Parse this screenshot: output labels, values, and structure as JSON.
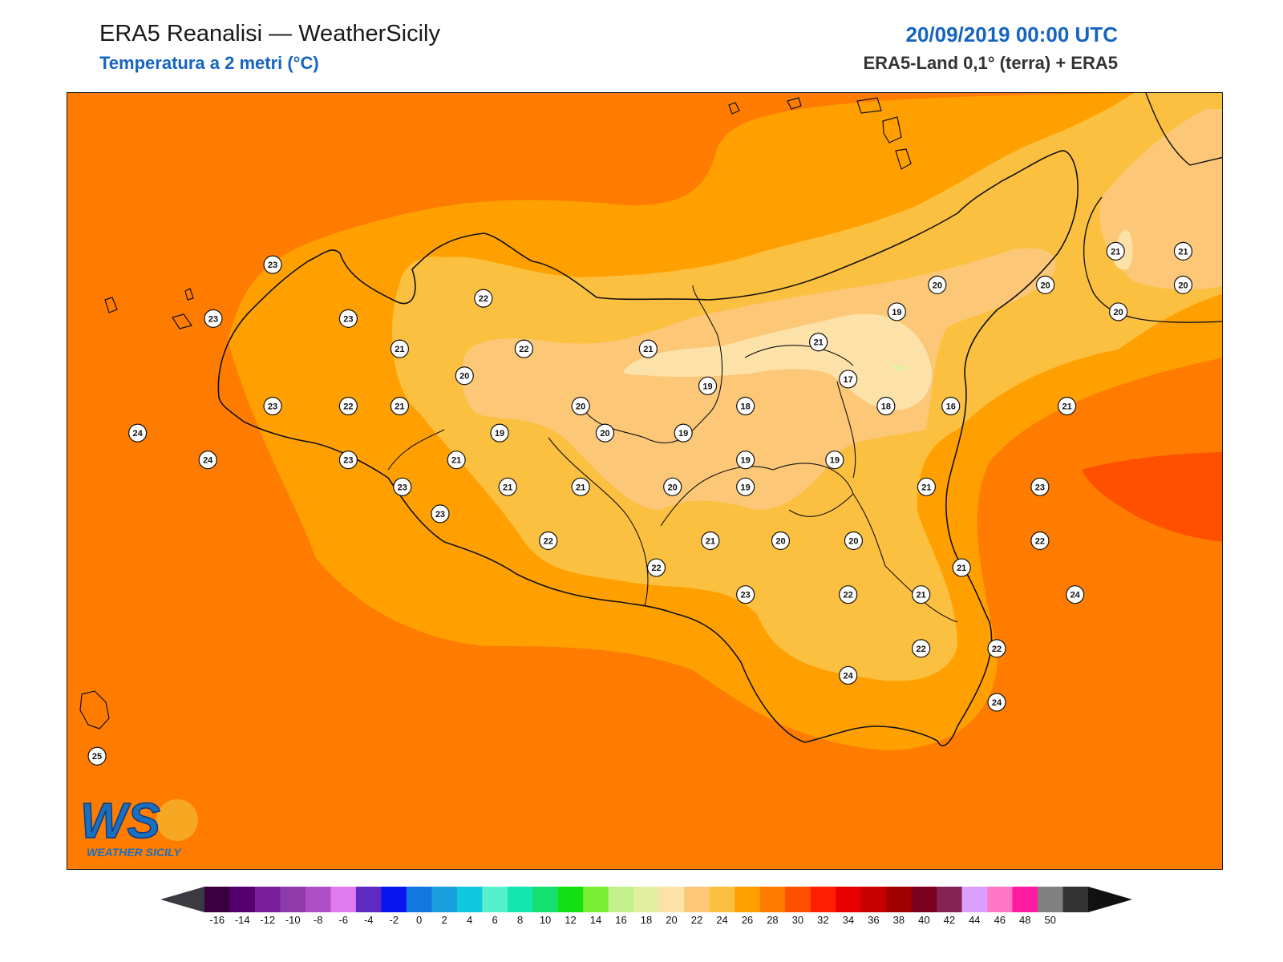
{
  "header": {
    "title": "ERA5 Reanalisi — WeatherSicily",
    "subtitle": "Temperatura a 2 metri (°C)",
    "datetime": "20/09/2019 00:00 UTC",
    "source": "ERA5-Land 0,1° (terra) + ERA5"
  },
  "logo": {
    "letters": "WS",
    "name": "WEATHER SICILY"
  },
  "colorbar": {
    "ticks": [
      "-16",
      "-14",
      "-12",
      "-10",
      "-8",
      "-6",
      "-4",
      "-2",
      "0",
      "2",
      "4",
      "6",
      "8",
      "10",
      "12",
      "14",
      "16",
      "18",
      "20",
      "22",
      "24",
      "26",
      "28",
      "30",
      "32",
      "34",
      "36",
      "38",
      "40",
      "42",
      "44",
      "46",
      "48",
      "50"
    ],
    "colors": [
      "#3b0040",
      "#560070",
      "#7a1e9c",
      "#8e3aa8",
      "#b04ec7",
      "#e07aee",
      "#5d2bc2",
      "#0a16f0",
      "#1078e0",
      "#1a9fe0",
      "#10c8e0",
      "#55f0cc",
      "#14e6b0",
      "#13e070",
      "#12e012",
      "#7aee32",
      "#c2f08a",
      "#e2eea0",
      "#fce2a8",
      "#fcc878",
      "#fcc040",
      "#ffa000",
      "#ff7c00",
      "#ff5000",
      "#ff1e00",
      "#e80000",
      "#c80000",
      "#a00000",
      "#7c0020",
      "#852454",
      "#d9a0ff",
      "#ff78c8",
      "#ff1aa0",
      "#808080",
      "#333333"
    ],
    "under_color": "#3a3a40",
    "over_color": "#111111"
  },
  "stations": [
    {
      "lon": 12.58,
      "lat": 38.28,
      "t": "23"
    },
    {
      "lon": 12.36,
      "lat": 38.12,
      "t": "23"
    },
    {
      "lon": 12.86,
      "lat": 38.12,
      "t": "23"
    },
    {
      "lon": 13.36,
      "lat": 38.18,
      "t": "22"
    },
    {
      "lon": 13.05,
      "lat": 38.03,
      "t": "21"
    },
    {
      "lon": 13.51,
      "lat": 38.03,
      "t": "22"
    },
    {
      "lon": 13.97,
      "lat": 38.03,
      "t": "21"
    },
    {
      "lon": 14.6,
      "lat": 38.05,
      "t": "21"
    },
    {
      "lon": 13.29,
      "lat": 37.95,
      "t": "20"
    },
    {
      "lon": 14.19,
      "lat": 37.92,
      "t": "19"
    },
    {
      "lon": 14.71,
      "lat": 37.94,
      "t": "17"
    },
    {
      "lon": 15.04,
      "lat": 38.22,
      "t": "20"
    },
    {
      "lon": 15.44,
      "lat": 38.22,
      "t": "20"
    },
    {
      "lon": 15.7,
      "lat": 38.32,
      "t": "21"
    },
    {
      "lon": 15.95,
      "lat": 38.32,
      "t": "21"
    },
    {
      "lon": 15.95,
      "lat": 38.22,
      "t": "20"
    },
    {
      "lon": 15.71,
      "lat": 38.14,
      "t": "20"
    },
    {
      "lon": 14.89,
      "lat": 38.14,
      "t": "19"
    },
    {
      "lon": 12.58,
      "lat": 37.86,
      "t": "23"
    },
    {
      "lon": 12.86,
      "lat": 37.86,
      "t": "22"
    },
    {
      "lon": 13.05,
      "lat": 37.86,
      "t": "21"
    },
    {
      "lon": 13.72,
      "lat": 37.86,
      "t": "20"
    },
    {
      "lon": 14.33,
      "lat": 37.86,
      "t": "18"
    },
    {
      "lon": 14.85,
      "lat": 37.86,
      "t": "18"
    },
    {
      "lon": 15.09,
      "lat": 37.86,
      "t": "16"
    },
    {
      "lon": 15.52,
      "lat": 37.86,
      "t": "21"
    },
    {
      "lon": 12.08,
      "lat": 37.78,
      "t": "24"
    },
    {
      "lon": 13.42,
      "lat": 37.78,
      "t": "19"
    },
    {
      "lon": 13.81,
      "lat": 37.78,
      "t": "20"
    },
    {
      "lon": 14.1,
      "lat": 37.78,
      "t": "19"
    },
    {
      "lon": 12.34,
      "lat": 37.7,
      "t": "24"
    },
    {
      "lon": 12.86,
      "lat": 37.7,
      "t": "23"
    },
    {
      "lon": 13.26,
      "lat": 37.7,
      "t": "21"
    },
    {
      "lon": 14.33,
      "lat": 37.7,
      "t": "19"
    },
    {
      "lon": 14.66,
      "lat": 37.7,
      "t": "19"
    },
    {
      "lon": 13.06,
      "lat": 37.62,
      "t": "23"
    },
    {
      "lon": 13.45,
      "lat": 37.62,
      "t": "21"
    },
    {
      "lon": 13.72,
      "lat": 37.62,
      "t": "21"
    },
    {
      "lon": 14.06,
      "lat": 37.62,
      "t": "20"
    },
    {
      "lon": 14.33,
      "lat": 37.62,
      "t": "19"
    },
    {
      "lon": 15.0,
      "lat": 37.62,
      "t": "21"
    },
    {
      "lon": 15.42,
      "lat": 37.62,
      "t": "23"
    },
    {
      "lon": 13.2,
      "lat": 37.54,
      "t": "23"
    },
    {
      "lon": 13.6,
      "lat": 37.46,
      "t": "22"
    },
    {
      "lon": 14.2,
      "lat": 37.46,
      "t": "21"
    },
    {
      "lon": 14.46,
      "lat": 37.46,
      "t": "20"
    },
    {
      "lon": 14.73,
      "lat": 37.46,
      "t": "20"
    },
    {
      "lon": 15.42,
      "lat": 37.46,
      "t": "22"
    },
    {
      "lon": 14.0,
      "lat": 37.38,
      "t": "22"
    },
    {
      "lon": 15.13,
      "lat": 37.38,
      "t": "21"
    },
    {
      "lon": 14.33,
      "lat": 37.3,
      "t": "23"
    },
    {
      "lon": 14.71,
      "lat": 37.3,
      "t": "22"
    },
    {
      "lon": 14.98,
      "lat": 37.3,
      "t": "21"
    },
    {
      "lon": 15.55,
      "lat": 37.3,
      "t": "24"
    },
    {
      "lon": 14.98,
      "lat": 37.14,
      "t": "22"
    },
    {
      "lon": 15.26,
      "lat": 37.14,
      "t": "22"
    },
    {
      "lon": 14.71,
      "lat": 37.06,
      "t": "24"
    },
    {
      "lon": 15.26,
      "lat": 36.98,
      "t": "24"
    },
    {
      "lon": 11.93,
      "lat": 36.82,
      "t": "25"
    }
  ]
}
